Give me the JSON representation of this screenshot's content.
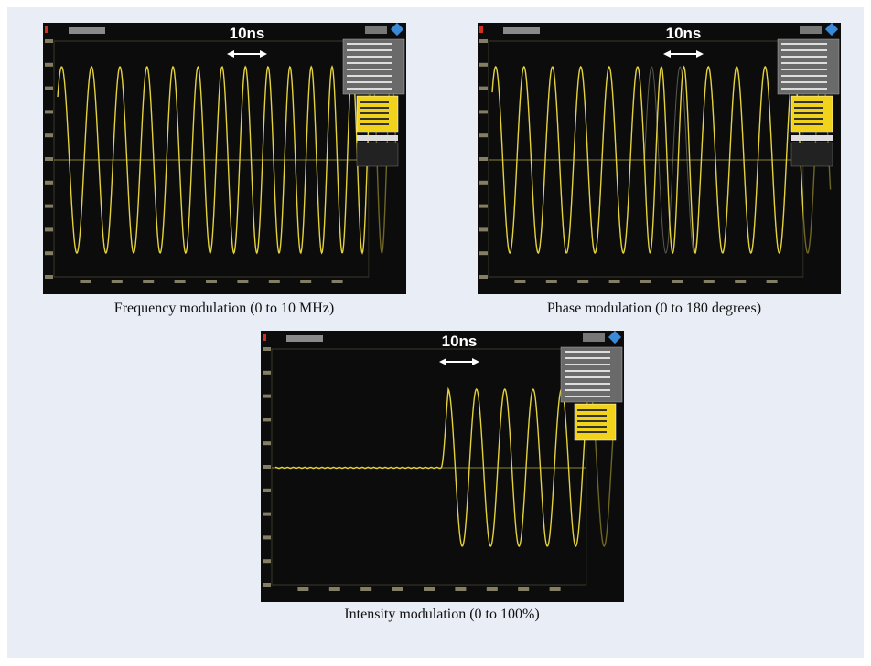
{
  "panels": [
    {
      "scale_label": "10ns",
      "caption": "Frequency modulation (0 to 10 MHz)"
    },
    {
      "scale_label": "10ns",
      "caption": "Phase modulation (0 to 180 degrees)"
    },
    {
      "scale_label": "10ns",
      "caption": "Intensity modulation (0 to 100%)"
    }
  ]
}
